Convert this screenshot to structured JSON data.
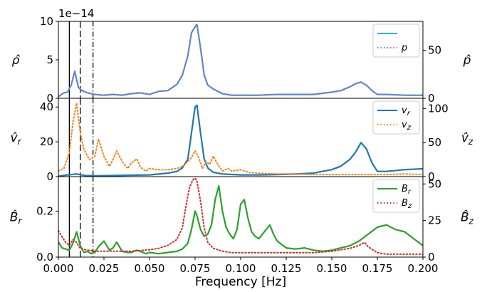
{
  "figure": {
    "xlabel": "Frequency [Hz]",
    "x_ticks": [
      "0.000",
      "0.025",
      "0.050",
      "0.075",
      "0.100",
      "0.125",
      "0.150",
      "0.175",
      "0.200"
    ],
    "offset_text": "1e−14"
  },
  "chart_data": [
    {
      "type": "line",
      "xlim": [
        0,
        0.2
      ],
      "ylim_left": [
        0,
        10
      ],
      "ylim_right": [
        0,
        80
      ],
      "ylabel_left": "ρ̂",
      "ylabel_right": "p̂",
      "yticks_left": [
        "0",
        "5",
        "10"
      ],
      "yticks_right": [
        "0",
        "50"
      ],
      "grid": false,
      "legend": "top-right",
      "vlines": [
        {
          "x": 0.006,
          "style": "solid"
        },
        {
          "x": 0.012,
          "style": "dashed"
        },
        {
          "x": 0.019,
          "style": "dashdot"
        }
      ],
      "series": [
        {
          "name": "",
          "axis": "left",
          "color": "#17becf",
          "style": "solid",
          "x": [
            0.0,
            0.003,
            0.005,
            0.007,
            0.009,
            0.011,
            0.013,
            0.016,
            0.02,
            0.025,
            0.03,
            0.035,
            0.04,
            0.045,
            0.05,
            0.055,
            0.06,
            0.065,
            0.068,
            0.071,
            0.073,
            0.075,
            0.076,
            0.078,
            0.08,
            0.082,
            0.085,
            0.09,
            0.095,
            0.1,
            0.11,
            0.12,
            0.13,
            0.14,
            0.15,
            0.155,
            0.16,
            0.163,
            0.166,
            0.169,
            0.172,
            0.175,
            0.18,
            0.19,
            0.2
          ],
          "values": [
            0.2,
            0.7,
            0.8,
            1.7,
            3.5,
            1.4,
            1.0,
            0.7,
            0.5,
            0.4,
            0.5,
            0.4,
            0.6,
            0.7,
            0.5,
            0.9,
            1.0,
            1.8,
            3.0,
            5.5,
            8.5,
            9.3,
            9.6,
            6.5,
            3.0,
            1.7,
            1.2,
            0.6,
            0.4,
            0.4,
            0.4,
            0.5,
            0.5,
            0.5,
            0.8,
            1.0,
            1.5,
            1.9,
            2.1,
            1.7,
            1.0,
            0.5,
            0.5,
            0.4,
            0.4
          ]
        },
        {
          "name": "p",
          "axis": "right",
          "color": "#9467bd",
          "style": "dotted",
          "x": [
            0.0,
            0.003,
            0.005,
            0.007,
            0.009,
            0.011,
            0.013,
            0.016,
            0.02,
            0.025,
            0.03,
            0.035,
            0.04,
            0.045,
            0.05,
            0.055,
            0.06,
            0.065,
            0.068,
            0.071,
            0.073,
            0.075,
            0.076,
            0.078,
            0.08,
            0.082,
            0.085,
            0.09,
            0.095,
            0.1,
            0.11,
            0.12,
            0.13,
            0.14,
            0.15,
            0.155,
            0.16,
            0.163,
            0.166,
            0.169,
            0.172,
            0.175,
            0.18,
            0.19,
            0.2
          ],
          "values": [
            1.6,
            5.6,
            6.4,
            13.6,
            28.0,
            11.2,
            8.0,
            5.6,
            4.0,
            3.2,
            4.0,
            3.2,
            4.8,
            5.6,
            4.0,
            7.2,
            8.0,
            14.4,
            24.0,
            44.0,
            68.0,
            74.4,
            76.8,
            52.0,
            24.0,
            13.6,
            9.6,
            4.8,
            3.2,
            3.2,
            3.2,
            4.0,
            4.0,
            4.0,
            6.4,
            8.0,
            12.0,
            15.2,
            16.8,
            13.6,
            8.0,
            4.0,
            4.0,
            3.2,
            3.2
          ]
        }
      ]
    },
    {
      "type": "line",
      "xlim": [
        0,
        0.2
      ],
      "ylim_left": [
        0,
        45
      ],
      "ylim_right": [
        0,
        115
      ],
      "ylabel_left": "v̂r",
      "ylabel_right": "v̂z",
      "yticks_left": [
        "0",
        "20",
        "40"
      ],
      "yticks_right": [
        "0",
        "50",
        "100"
      ],
      "grid": false,
      "legend": "top-right",
      "vlines": [
        {
          "x": 0.006,
          "style": "solid"
        },
        {
          "x": 0.012,
          "style": "dashed"
        },
        {
          "x": 0.019,
          "style": "dashdot"
        }
      ],
      "series": [
        {
          "name": "v",
          "sub": "r",
          "axis": "left",
          "color": "#1f77b4",
          "style": "solid",
          "x": [
            0.0,
            0.005,
            0.01,
            0.015,
            0.02,
            0.03,
            0.04,
            0.05,
            0.06,
            0.065,
            0.068,
            0.071,
            0.073,
            0.075,
            0.076,
            0.078,
            0.08,
            0.082,
            0.085,
            0.09,
            0.1,
            0.11,
            0.12,
            0.13,
            0.14,
            0.15,
            0.155,
            0.16,
            0.163,
            0.166,
            0.169,
            0.172,
            0.175,
            0.18,
            0.19,
            0.2
          ],
          "values": [
            0.3,
            1.0,
            1.5,
            0.6,
            0.5,
            0.6,
            0.8,
            1.0,
            2.0,
            3.0,
            5.0,
            10.0,
            25.0,
            40.0,
            41.0,
            25.0,
            10.0,
            5.0,
            2.5,
            1.5,
            1.0,
            1.0,
            1.2,
            1.5,
            2.0,
            4.0,
            6.0,
            10.0,
            14.0,
            19.5,
            16.0,
            8.0,
            3.0,
            3.0,
            4.0,
            4.5
          ]
        },
        {
          "name": "v",
          "sub": "z",
          "axis": "right",
          "color": "#ff7f0e",
          "style": "dotted",
          "x": [
            0.0,
            0.003,
            0.006,
            0.008,
            0.01,
            0.012,
            0.014,
            0.017,
            0.02,
            0.022,
            0.025,
            0.028,
            0.03,
            0.032,
            0.035,
            0.038,
            0.04,
            0.043,
            0.045,
            0.048,
            0.05,
            0.055,
            0.06,
            0.065,
            0.068,
            0.071,
            0.073,
            0.075,
            0.077,
            0.079,
            0.081,
            0.083,
            0.085,
            0.087,
            0.09,
            0.093,
            0.095,
            0.1,
            0.105,
            0.11,
            0.12,
            0.13,
            0.14,
            0.15,
            0.16,
            0.17,
            0.18,
            0.19,
            0.2
          ],
          "values": [
            8,
            12,
            35,
            80,
            108,
            65,
            40,
            25,
            30,
            55,
            30,
            15,
            25,
            38,
            22,
            12,
            20,
            26,
            14,
            8,
            12,
            10,
            10,
            12,
            15,
            22,
            28,
            38,
            28,
            12,
            22,
            18,
            30,
            20,
            8,
            12,
            8,
            10,
            6,
            5,
            4,
            4,
            3,
            3,
            3,
            3,
            3,
            4,
            3
          ]
        }
      ]
    },
    {
      "type": "line",
      "xlim": [
        0,
        0.2
      ],
      "ylim_left": [
        0,
        0.35
      ],
      "ylim_right": [
        0,
        55
      ],
      "ylabel_left": "B̂r",
      "ylabel_right": "B̂z",
      "yticks_left": [
        "0.0",
        "0.2"
      ],
      "yticks_right": [
        "0",
        "25",
        "50"
      ],
      "grid": false,
      "legend": "top-right",
      "vlines": [
        {
          "x": 0.006,
          "style": "solid"
        },
        {
          "x": 0.012,
          "style": "dashed"
        },
        {
          "x": 0.019,
          "style": "dashdot"
        }
      ],
      "series": [
        {
          "name": "B",
          "sub": "r",
          "axis": "left",
          "color": "#2ca02c",
          "style": "solid",
          "x": [
            0.0,
            0.002,
            0.004,
            0.006,
            0.008,
            0.01,
            0.012,
            0.014,
            0.016,
            0.018,
            0.02,
            0.022,
            0.025,
            0.028,
            0.03,
            0.032,
            0.035,
            0.038,
            0.04,
            0.043,
            0.045,
            0.048,
            0.05,
            0.055,
            0.06,
            0.065,
            0.068,
            0.071,
            0.073,
            0.075,
            0.076,
            0.078,
            0.08,
            0.082,
            0.084,
            0.086,
            0.088,
            0.09,
            0.092,
            0.094,
            0.096,
            0.098,
            0.1,
            0.102,
            0.104,
            0.106,
            0.108,
            0.11,
            0.112,
            0.114,
            0.116,
            0.118,
            0.12,
            0.125,
            0.13,
            0.135,
            0.14,
            0.145,
            0.15,
            0.155,
            0.16,
            0.165,
            0.17,
            0.175,
            0.18,
            0.185,
            0.19,
            0.195,
            0.2
          ],
          "values": [
            0.065,
            0.04,
            0.035,
            0.03,
            0.06,
            0.11,
            0.05,
            0.02,
            0.025,
            0.015,
            0.02,
            0.045,
            0.07,
            0.03,
            0.04,
            0.065,
            0.025,
            0.02,
            0.02,
            0.03,
            0.025,
            0.015,
            0.02,
            0.015,
            0.02,
            0.025,
            0.035,
            0.06,
            0.12,
            0.2,
            0.18,
            0.12,
            0.09,
            0.1,
            0.14,
            0.25,
            0.31,
            0.2,
            0.13,
            0.1,
            0.08,
            0.12,
            0.23,
            0.25,
            0.17,
            0.11,
            0.09,
            0.08,
            0.1,
            0.12,
            0.14,
            0.1,
            0.07,
            0.04,
            0.035,
            0.04,
            0.03,
            0.025,
            0.03,
            0.04,
            0.05,
            0.07,
            0.1,
            0.13,
            0.14,
            0.12,
            0.11,
            0.08,
            0.05
          ]
        },
        {
          "name": "B",
          "sub": "z",
          "axis": "right",
          "color": "#d62728",
          "style": "dotted",
          "x": [
            0.0,
            0.002,
            0.004,
            0.006,
            0.008,
            0.01,
            0.012,
            0.015,
            0.02,
            0.03,
            0.04,
            0.05,
            0.055,
            0.06,
            0.065,
            0.068,
            0.07,
            0.072,
            0.074,
            0.075,
            0.076,
            0.078,
            0.08,
            0.082,
            0.085,
            0.09,
            0.095,
            0.1,
            0.11,
            0.12,
            0.13,
            0.14,
            0.15,
            0.155,
            0.16,
            0.165,
            0.168,
            0.17,
            0.175,
            0.18,
            0.19,
            0.2
          ],
          "values": [
            18,
            14,
            10,
            8,
            12,
            10,
            6,
            5,
            4,
            4,
            4,
            5,
            6,
            8,
            12,
            20,
            35,
            48,
            53,
            54,
            52,
            38,
            20,
            10,
            6,
            4,
            3,
            3,
            3,
            3,
            3,
            3,
            4,
            5,
            6,
            8,
            10,
            7,
            3,
            2,
            2,
            2
          ]
        }
      ]
    }
  ]
}
